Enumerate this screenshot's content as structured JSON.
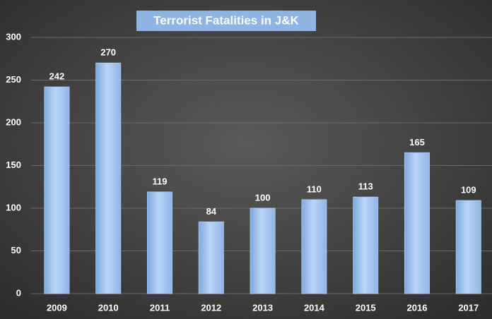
{
  "chart_data": {
    "type": "bar",
    "title": "Terrorist Fatalities in J&K",
    "categories": [
      "2009",
      "2010",
      "2011",
      "2012",
      "2013",
      "2014",
      "2015",
      "2016",
      "2017"
    ],
    "values": [
      242,
      270,
      119,
      84,
      100,
      110,
      113,
      165,
      109
    ],
    "color": "#a6c8f2",
    "ylim": [
      0,
      300
    ],
    "yticks": [
      0,
      50,
      100,
      150,
      200,
      250,
      300
    ],
    "grid": true
  }
}
